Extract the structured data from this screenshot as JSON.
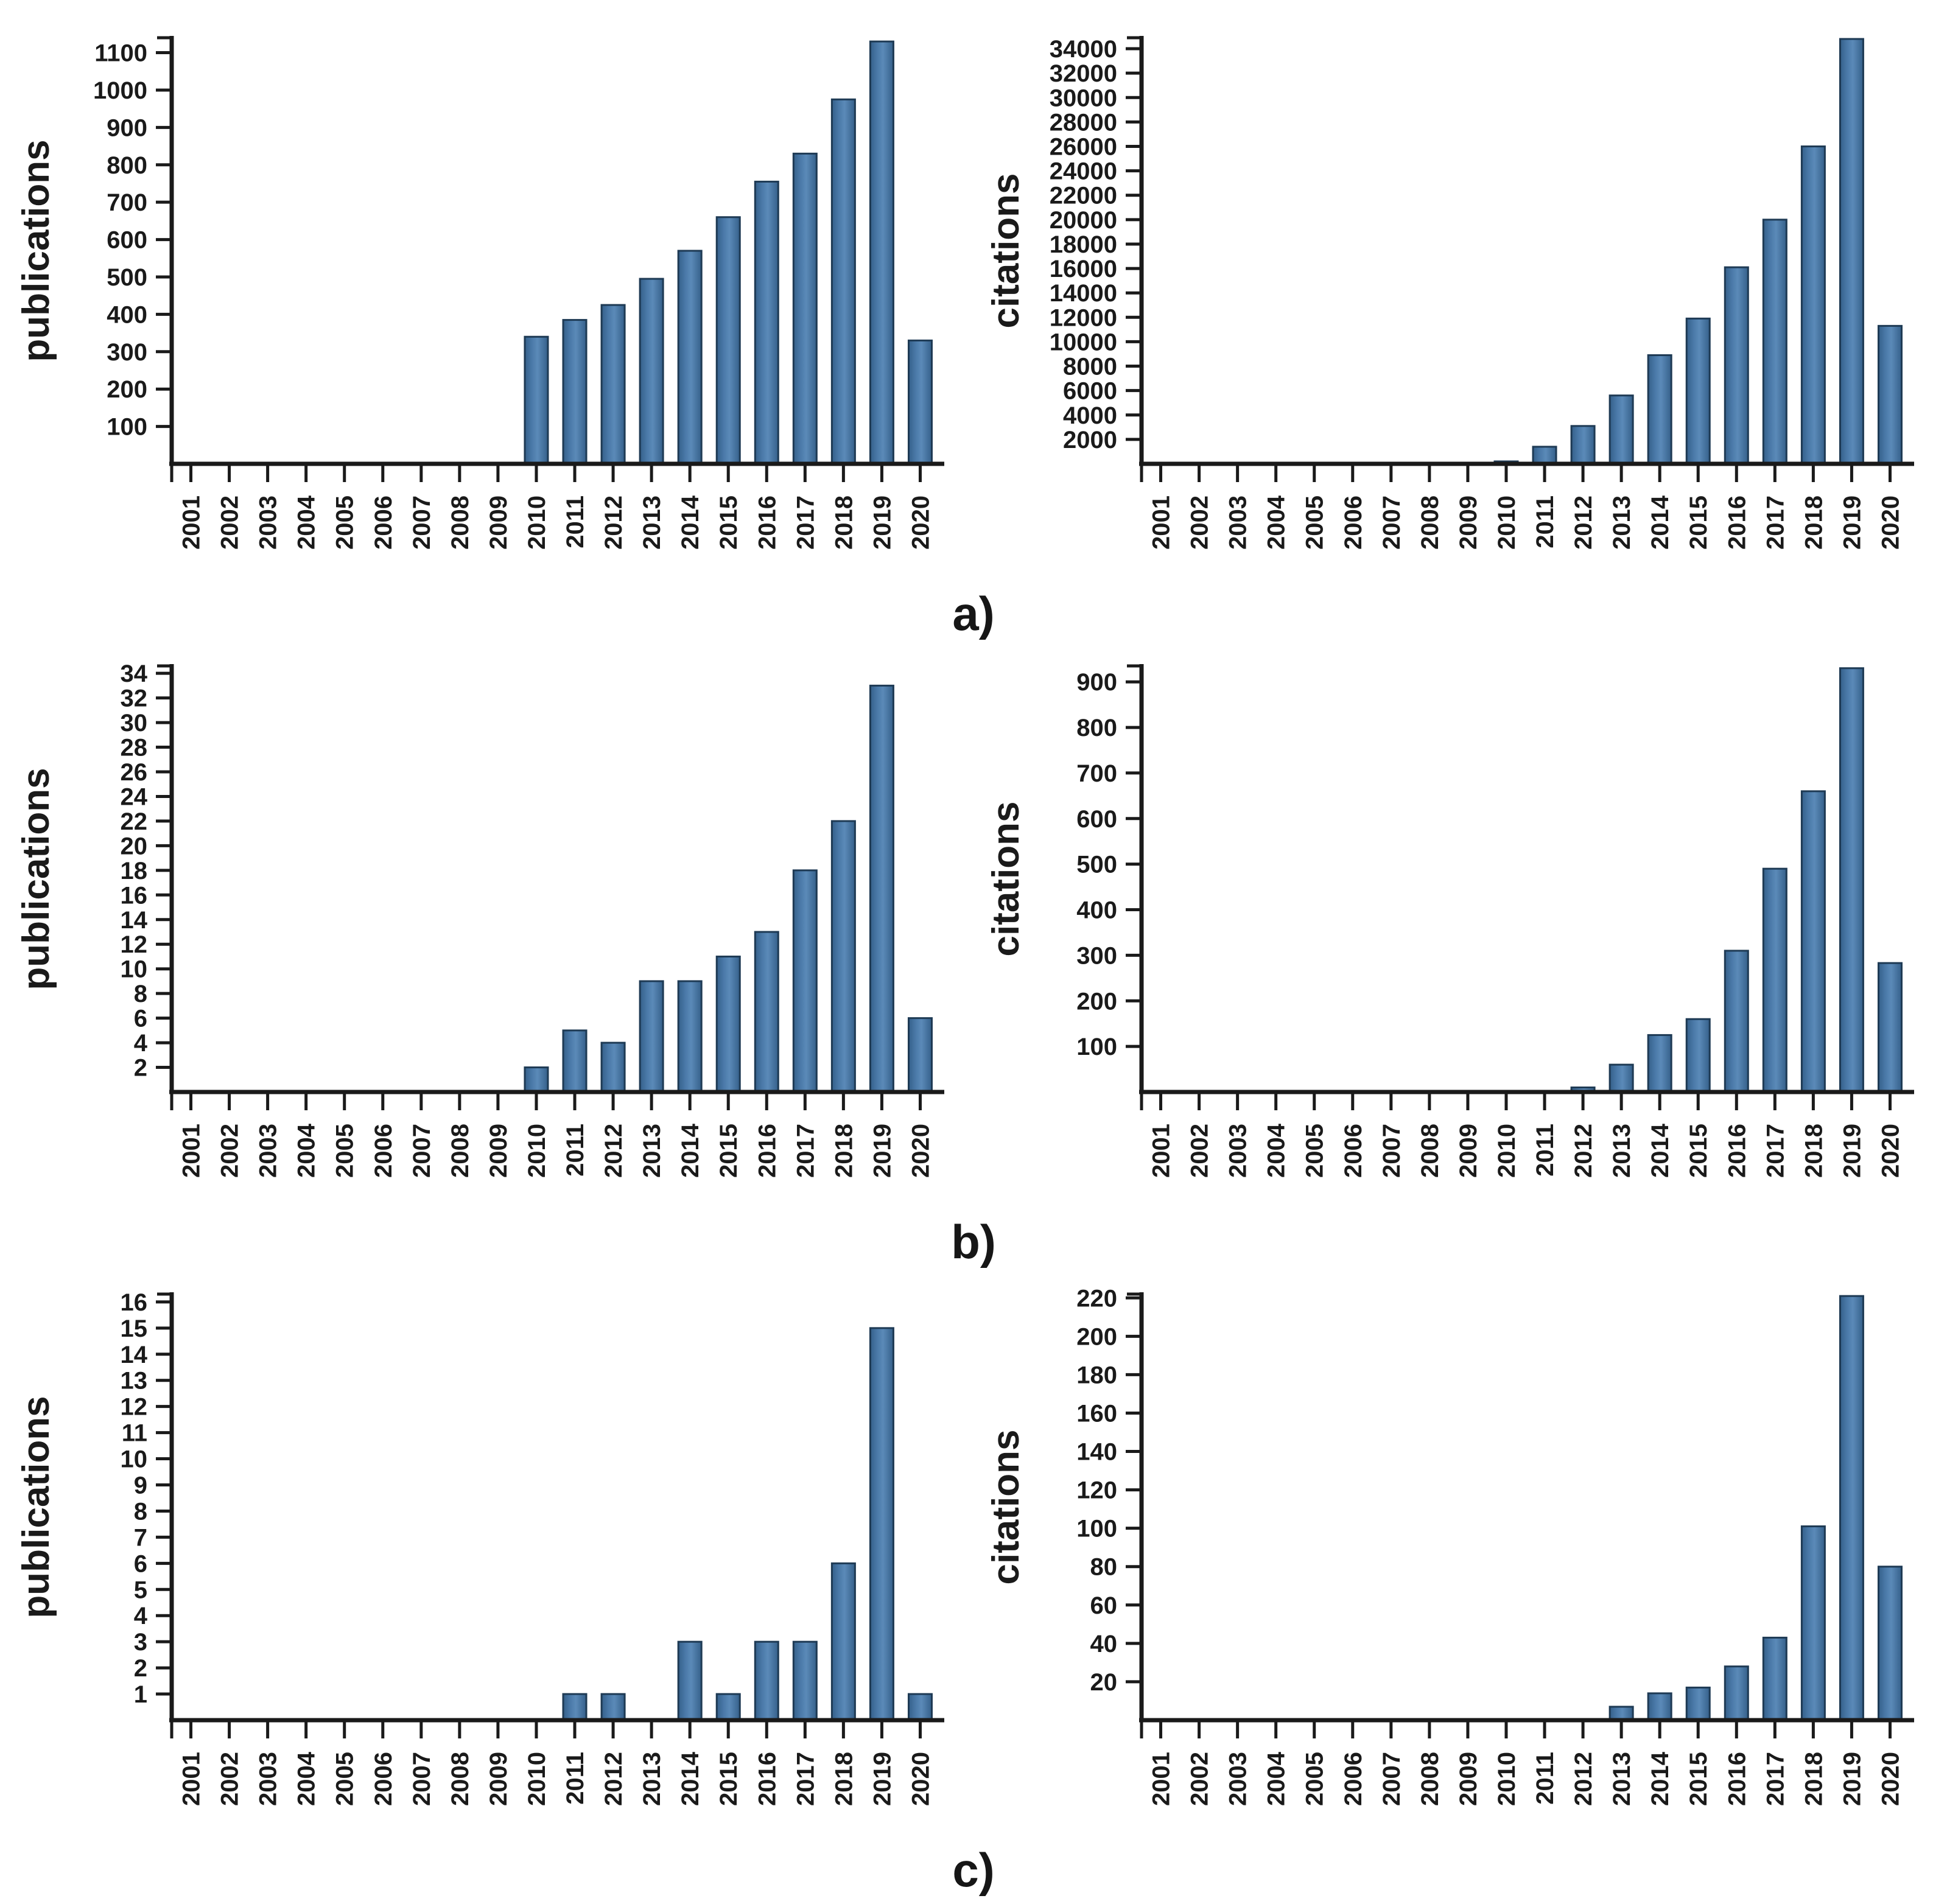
{
  "panels": [
    {
      "label": "a)"
    },
    {
      "label": "b)"
    },
    {
      "label": "c)"
    }
  ],
  "style": {
    "bar_fill": "#4a79a8",
    "bar_fill_light": "#5b8ab8",
    "bar_edge_fill": "#35608a",
    "bar_stroke": "#1e3a54",
    "axis_color": "#1a1a1a",
    "text_color": "#1a1a1a"
  },
  "chart_data": [
    {
      "type": "bar",
      "panel": "a",
      "position": "left",
      "title": "",
      "xlabel": "",
      "ylabel": "publications",
      "legend": "none",
      "grid": false,
      "categories": [
        "2001",
        "2002",
        "2003",
        "2004",
        "2005",
        "2006",
        "2007",
        "2008",
        "2009",
        "2010",
        "2011",
        "2012",
        "2013",
        "2014",
        "2015",
        "2016",
        "2017",
        "2018",
        "2019",
        "2020"
      ],
      "values": [
        0,
        0,
        0,
        0,
        0,
        0,
        0,
        0,
        0,
        340,
        385,
        425,
        495,
        570,
        660,
        755,
        830,
        975,
        1130,
        330
      ],
      "ytick_step": 100,
      "ytick_max": 1100,
      "ylim": [
        0,
        1140
      ]
    },
    {
      "type": "bar",
      "panel": "a",
      "position": "right",
      "title": "",
      "xlabel": "",
      "ylabel": "citations",
      "legend": "none",
      "grid": false,
      "categories": [
        "2001",
        "2002",
        "2003",
        "2004",
        "2005",
        "2006",
        "2007",
        "2008",
        "2009",
        "2010",
        "2011",
        "2012",
        "2013",
        "2014",
        "2015",
        "2016",
        "2017",
        "2018",
        "2019",
        "2020"
      ],
      "values": [
        0,
        0,
        0,
        0,
        0,
        0,
        0,
        0,
        0,
        200,
        1400,
        3100,
        5600,
        8900,
        11900,
        16100,
        20000,
        26000,
        34800,
        11300
      ],
      "ytick_step": 2000,
      "ytick_max": 34000,
      "ylim": [
        0,
        34900
      ]
    },
    {
      "type": "bar",
      "panel": "b",
      "position": "left",
      "title": "",
      "xlabel": "",
      "ylabel": "publications",
      "legend": "none",
      "grid": false,
      "categories": [
        "2001",
        "2002",
        "2003",
        "2004",
        "2005",
        "2006",
        "2007",
        "2008",
        "2009",
        "2010",
        "2011",
        "2012",
        "2013",
        "2014",
        "2015",
        "2016",
        "2017",
        "2018",
        "2019",
        "2020"
      ],
      "values": [
        0,
        0,
        0,
        0,
        0,
        0,
        0,
        0,
        0,
        2,
        5,
        4,
        9,
        9,
        11,
        13,
        18,
        22,
        33,
        6
      ],
      "ytick_step": 2,
      "ytick_max": 34,
      "ylim": [
        0,
        34.6
      ]
    },
    {
      "type": "bar",
      "panel": "b",
      "position": "right",
      "title": "",
      "xlabel": "",
      "ylabel": "citations",
      "legend": "none",
      "grid": false,
      "categories": [
        "2001",
        "2002",
        "2003",
        "2004",
        "2005",
        "2006",
        "2007",
        "2008",
        "2009",
        "2010",
        "2011",
        "2012",
        "2013",
        "2014",
        "2015",
        "2016",
        "2017",
        "2018",
        "2019",
        "2020"
      ],
      "values": [
        0,
        0,
        0,
        0,
        0,
        0,
        0,
        0,
        0,
        0,
        0,
        10,
        60,
        125,
        160,
        310,
        490,
        660,
        930,
        283
      ],
      "ytick_step": 100,
      "ytick_max": 900,
      "ylim": [
        0,
        935
      ]
    },
    {
      "type": "bar",
      "panel": "c",
      "position": "left",
      "title": "",
      "xlabel": "",
      "ylabel": "publications",
      "legend": "none",
      "grid": false,
      "categories": [
        "2001",
        "2002",
        "2003",
        "2004",
        "2005",
        "2006",
        "2007",
        "2008",
        "2009",
        "2010",
        "2011",
        "2012",
        "2013",
        "2014",
        "2015",
        "2016",
        "2017",
        "2018",
        "2019",
        "2020"
      ],
      "values": [
        0,
        0,
        0,
        0,
        0,
        0,
        0,
        0,
        0,
        0,
        1,
        1,
        0,
        3,
        1,
        3,
        3,
        6,
        15,
        1
      ],
      "ytick_step": 1,
      "ytick_max": 16,
      "ylim": [
        0,
        16.3
      ]
    },
    {
      "type": "bar",
      "panel": "c",
      "position": "right",
      "title": "",
      "xlabel": "",
      "ylabel": "citations",
      "legend": "none",
      "grid": false,
      "categories": [
        "2001",
        "2002",
        "2003",
        "2004",
        "2005",
        "2006",
        "2007",
        "2008",
        "2009",
        "2010",
        "2011",
        "2012",
        "2013",
        "2014",
        "2015",
        "2016",
        "2017",
        "2018",
        "2019",
        "2020"
      ],
      "values": [
        0,
        0,
        0,
        0,
        0,
        0,
        0,
        0,
        0,
        0,
        0,
        0,
        7,
        14,
        17,
        28,
        43,
        101,
        221,
        80
      ],
      "ytick_step": 20,
      "ytick_max": 220,
      "ylim": [
        0,
        222
      ]
    }
  ]
}
